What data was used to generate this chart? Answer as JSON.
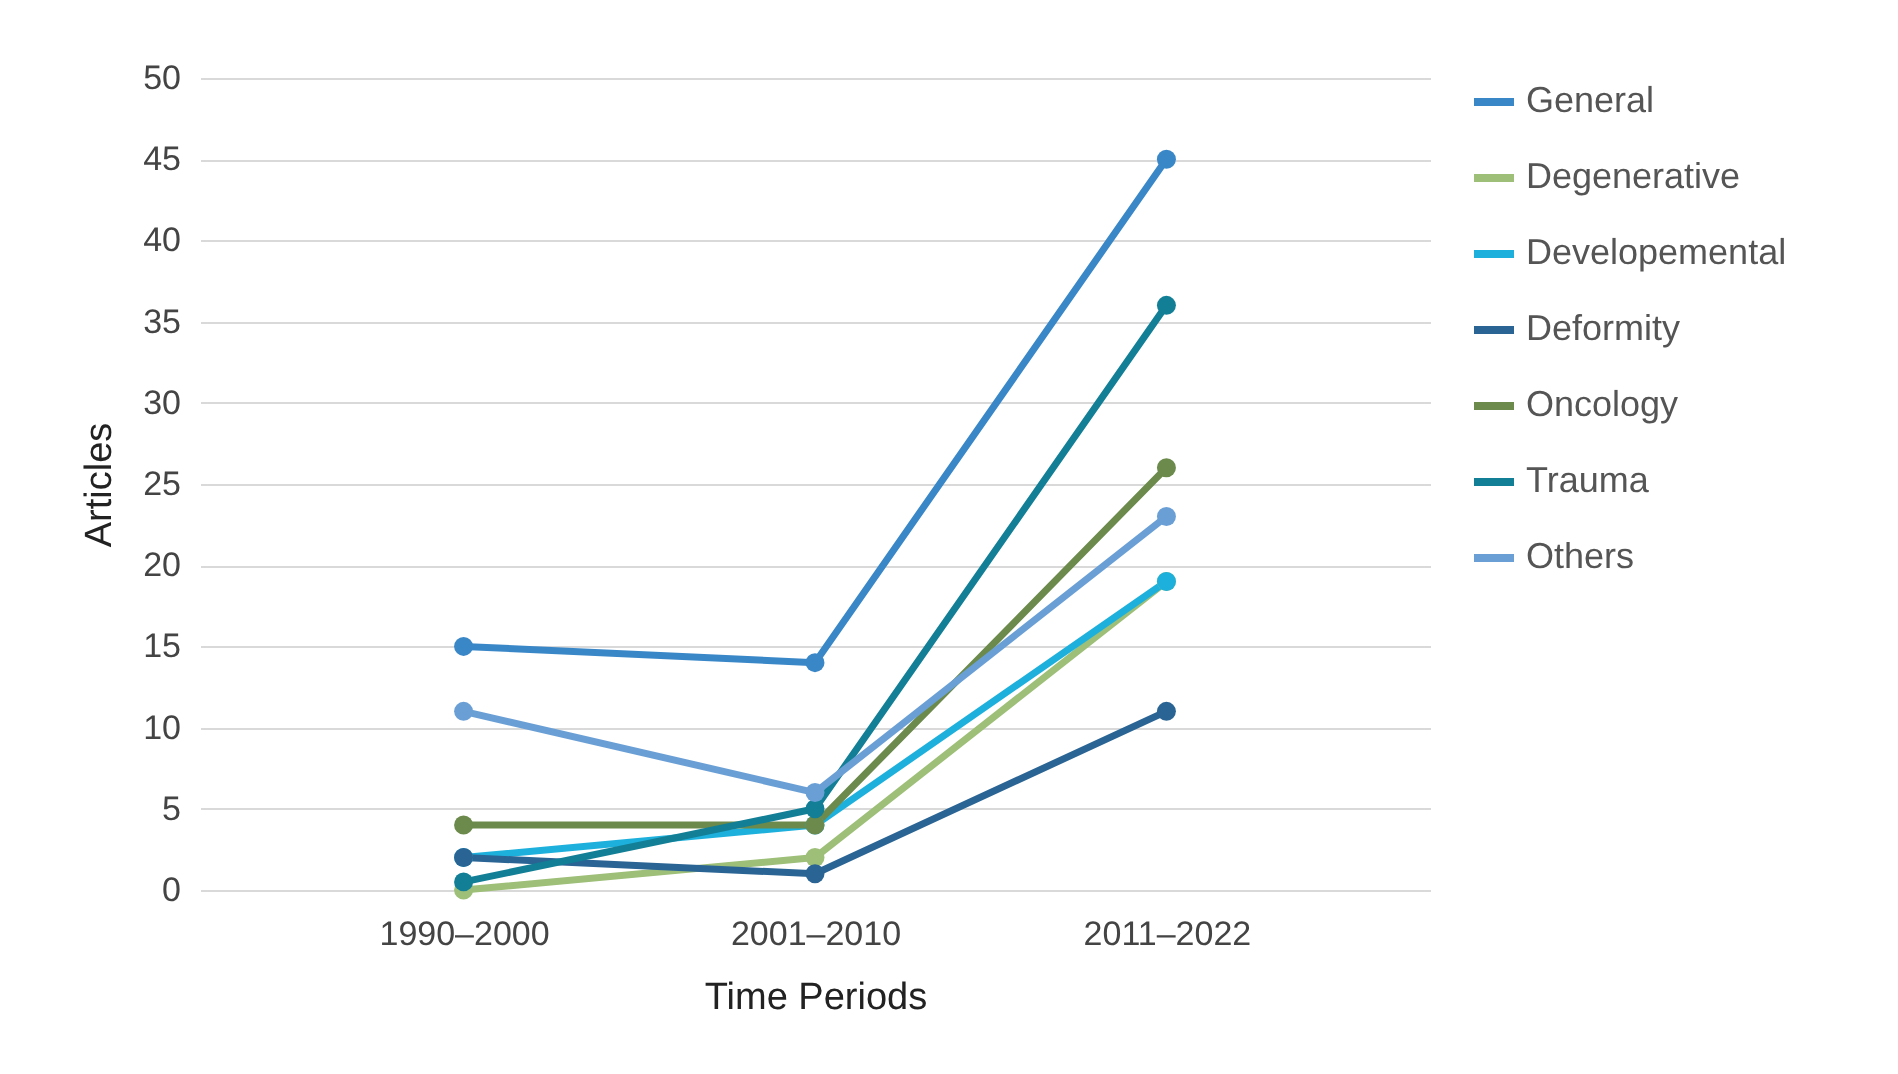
{
  "chart_data": {
    "type": "line",
    "xlabel": "Time Periods",
    "ylabel": "Articles",
    "categories": [
      "1990–2000",
      "2001–2010",
      "2011–2022"
    ],
    "series": [
      {
        "name": "General",
        "color": "#3a87c8",
        "values": [
          15,
          14,
          45
        ]
      },
      {
        "name": "Degenerative",
        "color": "#9dbf78",
        "values": [
          0,
          2,
          19
        ]
      },
      {
        "name": "Developemental",
        "color": "#1eb0dc",
        "values": [
          2,
          4,
          19
        ]
      },
      {
        "name": "Deformity",
        "color": "#2a6494",
        "values": [
          2,
          1,
          11
        ]
      },
      {
        "name": "Oncology",
        "color": "#6b8a4c",
        "values": [
          4,
          4,
          26
        ]
      },
      {
        "name": "Trauma",
        "color": "#127f96",
        "values": [
          0.5,
          5,
          36
        ]
      },
      {
        "name": "Others",
        "color": "#6a9fd6",
        "values": [
          11,
          6,
          23
        ]
      }
    ],
    "ylim": [
      0,
      50
    ],
    "yticks": [
      0,
      5,
      10,
      15,
      20,
      25,
      30,
      35,
      40,
      45,
      50
    ],
    "grid": "y",
    "legend": "right",
    "marker": "circle",
    "line_style": "solid"
  }
}
